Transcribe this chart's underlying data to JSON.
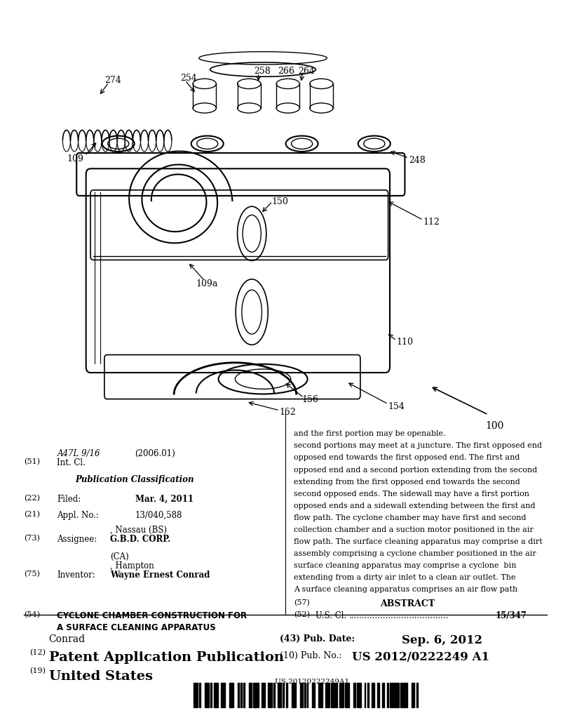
{
  "background_color": "#ffffff",
  "barcode_text": "US 20120222249A1",
  "header": {
    "line1_num": "(19)",
    "line1_text": "United States",
    "line2_num": "(12)",
    "line2_text": "Patent Application Publication",
    "line2_right_num": "(10)",
    "line2_right_label": "Pub. No.:",
    "line2_right_value": "US 2012/0222249 A1",
    "line3_left": "Conrad",
    "line3_right_num": "(43)",
    "line3_right_label": "Pub. Date:",
    "line3_right_value": "Sep. 6, 2012"
  },
  "left_col": {
    "title_num": "(54)",
    "title_text": "CYCLONE CHAMBER CONSTRUCTION FOR\nA SURFACE CLEANING APPARATUS",
    "inventor_num": "(75)",
    "inventor_label": "Inventor:",
    "inventor_value": "Wayne Ernest Conrad, Hampton\n(CA)",
    "assignee_num": "(73)",
    "assignee_label": "Assignee:",
    "assignee_value": "G.B.D. CORP., Nassau (BS)",
    "appl_num": "(21)",
    "appl_label": "Appl. No.:",
    "appl_value": "13/040,588",
    "filed_num": "(22)",
    "filed_label": "Filed:",
    "filed_value": "Mar. 4, 2011",
    "pub_class_header": "Publication Classification",
    "int_cl_num": "(51)",
    "int_cl_label": "Int. Cl.",
    "int_cl_value": "A47L 9/16",
    "int_cl_year": "(2006.01)"
  },
  "right_col": {
    "us_cl_num": "(52)",
    "us_cl_label": "U.S. Cl.",
    "us_cl_value": "15/347",
    "abstract_num": "(57)",
    "abstract_title": "ABSTRACT",
    "abstract_lines": [
      "A surface cleaning apparatus comprises an air flow path",
      "extending from a dirty air inlet to a clean air outlet. The",
      "surface cleaning apparatus may comprise a cyclone  bin",
      "assembly comprising a cyclone chamber positioned in the air",
      "flow path. The surface cleaning apparatus may comprise a dirt",
      "collection chamber and a suction motor positioned in the air",
      "flow path. The cyclone chamber may have first and second",
      "opposed ends and a sidewall extending between the first and",
      "second opposed ends. The sidewall may have a first portion",
      "extending from the first opposed end towards the second",
      "opposed end and a second portion extending from the second",
      "opposed end towards the first opposed end. The first and",
      "second portions may meet at a juncture. The first opposed end",
      "and the first portion may be openable."
    ]
  }
}
